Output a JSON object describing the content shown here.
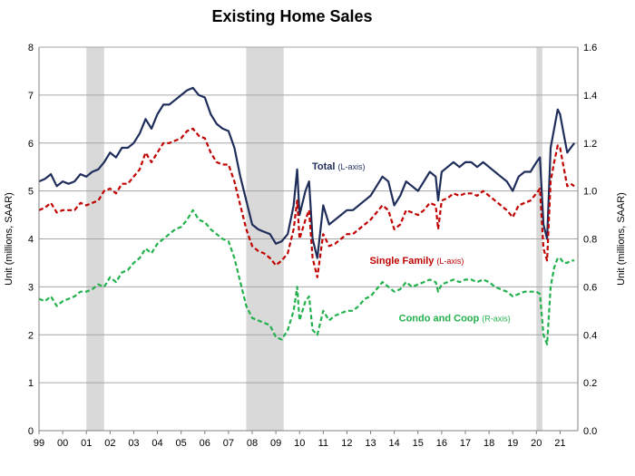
{
  "chart_data": {
    "type": "line",
    "title": "Existing Home Sales",
    "ylabel_left": "Unit (millions, SAAR)",
    "ylabel_right": "Unit (millions, SAAR)",
    "ylim_left": [
      0,
      8
    ],
    "ylim_right": [
      0,
      1.6
    ],
    "yticks_left": [
      "0",
      "1",
      "2",
      "3",
      "4",
      "5",
      "6",
      "7",
      "8"
    ],
    "yticks_right": [
      "0.0",
      "0.2",
      "0.4",
      "0.6",
      "0.8",
      "1.0",
      "1.2",
      "1.4",
      "1.6"
    ],
    "xlim": [
      1999.0,
      2021.75
    ],
    "xticks": [
      {
        "x": 1999.0,
        "label": "99"
      },
      {
        "x": 2000.0,
        "label": "00"
      },
      {
        "x": 2001.0,
        "label": "01"
      },
      {
        "x": 2002.0,
        "label": "02"
      },
      {
        "x": 2003.0,
        "label": "03"
      },
      {
        "x": 2004.0,
        "label": "04"
      },
      {
        "x": 2005.0,
        "label": "05"
      },
      {
        "x": 2006.0,
        "label": "06"
      },
      {
        "x": 2007.0,
        "label": "07"
      },
      {
        "x": 2008.0,
        "label": "08"
      },
      {
        "x": 2009.0,
        "label": "09"
      },
      {
        "x": 2010.0,
        "label": "10"
      },
      {
        "x": 2011.0,
        "label": "11"
      },
      {
        "x": 2012.0,
        "label": "12"
      },
      {
        "x": 2013.0,
        "label": "13"
      },
      {
        "x": 2014.0,
        "label": "14"
      },
      {
        "x": 2015.0,
        "label": "15"
      },
      {
        "x": 2016.0,
        "label": "16"
      },
      {
        "x": 2017.0,
        "label": "17"
      },
      {
        "x": 2018.0,
        "label": "18"
      },
      {
        "x": 2019.0,
        "label": "19"
      },
      {
        "x": 2020.0,
        "label": "20"
      },
      {
        "x": 2021.0,
        "label": "21"
      }
    ],
    "recessions": [
      [
        2001.0,
        2001.75
      ],
      [
        2007.75,
        2009.33
      ],
      [
        2020.0,
        2020.25
      ]
    ],
    "recession_color": "#d9d9d9",
    "grid": true,
    "series": [
      {
        "name": "Total",
        "axis_note": "(L-axis)",
        "axis": "left",
        "color": "#1f2d5a",
        "dash": "solid",
        "x": [
          1999.0,
          1999.25,
          1999.5,
          1999.75,
          2000.0,
          2000.25,
          2000.5,
          2000.75,
          2001.0,
          2001.25,
          2001.5,
          2001.75,
          2002.0,
          2002.25,
          2002.5,
          2002.75,
          2003.0,
          2003.25,
          2003.5,
          2003.75,
          2004.0,
          2004.25,
          2004.5,
          2004.75,
          2005.0,
          2005.25,
          2005.5,
          2005.75,
          2006.0,
          2006.25,
          2006.5,
          2006.75,
          2007.0,
          2007.25,
          2007.5,
          2007.75,
          2008.0,
          2008.25,
          2008.5,
          2008.75,
          2009.0,
          2009.25,
          2009.5,
          2009.75,
          2009.9,
          2010.0,
          2010.25,
          2010.4,
          2010.55,
          2010.75,
          2011.0,
          2011.25,
          2011.5,
          2011.75,
          2012.0,
          2012.25,
          2012.5,
          2012.75,
          2013.0,
          2013.25,
          2013.5,
          2013.75,
          2014.0,
          2014.25,
          2014.5,
          2014.75,
          2015.0,
          2015.25,
          2015.5,
          2015.75,
          2015.85,
          2016.0,
          2016.25,
          2016.5,
          2016.75,
          2017.0,
          2017.25,
          2017.5,
          2017.75,
          2018.0,
          2018.25,
          2018.5,
          2018.75,
          2019.0,
          2019.25,
          2019.5,
          2019.75,
          2020.0,
          2020.15,
          2020.3,
          2020.45,
          2020.6,
          2020.75,
          2020.9,
          2021.0,
          2021.15,
          2021.3,
          2021.45,
          2021.6
        ],
        "y": [
          5.2,
          5.25,
          5.35,
          5.1,
          5.2,
          5.15,
          5.2,
          5.35,
          5.3,
          5.4,
          5.45,
          5.6,
          5.8,
          5.7,
          5.9,
          5.9,
          6.0,
          6.2,
          6.5,
          6.3,
          6.6,
          6.8,
          6.8,
          6.9,
          7.0,
          7.1,
          7.15,
          7.0,
          6.95,
          6.6,
          6.4,
          6.3,
          6.25,
          5.9,
          5.3,
          4.8,
          4.3,
          4.2,
          4.15,
          4.1,
          3.9,
          3.95,
          4.1,
          4.7,
          5.45,
          4.5,
          5.0,
          5.2,
          4.0,
          3.6,
          4.7,
          4.3,
          4.4,
          4.5,
          4.6,
          4.6,
          4.7,
          4.8,
          4.9,
          5.1,
          5.3,
          5.2,
          4.7,
          4.9,
          5.2,
          5.1,
          5.0,
          5.2,
          5.4,
          5.3,
          4.8,
          5.4,
          5.5,
          5.6,
          5.5,
          5.6,
          5.6,
          5.5,
          5.6,
          5.5,
          5.4,
          5.3,
          5.2,
          5.0,
          5.3,
          5.4,
          5.4,
          5.6,
          5.7,
          4.3,
          4.0,
          5.9,
          6.3,
          6.7,
          6.6,
          6.2,
          5.8,
          5.9,
          6.0
        ]
      },
      {
        "name": "Single Family",
        "axis_note": "(L-axis)",
        "axis": "left",
        "color": "#c00000",
        "dash": "dashed",
        "x": [
          1999.0,
          1999.25,
          1999.5,
          1999.75,
          2000.0,
          2000.25,
          2000.5,
          2000.75,
          2001.0,
          2001.25,
          2001.5,
          2001.75,
          2002.0,
          2002.25,
          2002.5,
          2002.75,
          2003.0,
          2003.25,
          2003.5,
          2003.75,
          2004.0,
          2004.25,
          2004.5,
          2004.75,
          2005.0,
          2005.25,
          2005.5,
          2005.75,
          2006.0,
          2006.25,
          2006.5,
          2006.75,
          2007.0,
          2007.25,
          2007.5,
          2007.75,
          2008.0,
          2008.25,
          2008.5,
          2008.75,
          2009.0,
          2009.25,
          2009.5,
          2009.75,
          2009.9,
          2010.0,
          2010.25,
          2010.4,
          2010.55,
          2010.75,
          2011.0,
          2011.25,
          2011.5,
          2011.75,
          2012.0,
          2012.25,
          2012.5,
          2012.75,
          2013.0,
          2013.25,
          2013.5,
          2013.75,
          2014.0,
          2014.25,
          2014.5,
          2014.75,
          2015.0,
          2015.25,
          2015.5,
          2015.75,
          2015.85,
          2016.0,
          2016.25,
          2016.5,
          2016.75,
          2017.0,
          2017.25,
          2017.5,
          2017.75,
          2018.0,
          2018.25,
          2018.5,
          2018.75,
          2019.0,
          2019.25,
          2019.5,
          2019.75,
          2020.0,
          2020.15,
          2020.3,
          2020.45,
          2020.6,
          2020.75,
          2020.9,
          2021.0,
          2021.15,
          2021.3,
          2021.45,
          2021.6
        ],
        "y": [
          4.6,
          4.65,
          4.75,
          4.55,
          4.6,
          4.6,
          4.6,
          4.75,
          4.7,
          4.75,
          4.8,
          5.0,
          5.05,
          4.95,
          5.15,
          5.15,
          5.3,
          5.45,
          5.8,
          5.6,
          5.8,
          6.0,
          6.0,
          6.05,
          6.1,
          6.25,
          6.3,
          6.15,
          6.1,
          5.8,
          5.6,
          5.55,
          5.55,
          5.2,
          4.7,
          4.2,
          3.85,
          3.75,
          3.7,
          3.6,
          3.45,
          3.55,
          3.7,
          4.2,
          4.8,
          4.0,
          4.4,
          4.6,
          3.6,
          3.2,
          4.1,
          3.85,
          3.9,
          4.0,
          4.1,
          4.1,
          4.2,
          4.3,
          4.4,
          4.55,
          4.7,
          4.6,
          4.2,
          4.3,
          4.6,
          4.55,
          4.5,
          4.6,
          4.75,
          4.7,
          4.2,
          4.8,
          4.85,
          4.95,
          4.9,
          4.95,
          4.95,
          4.9,
          5.0,
          4.9,
          4.8,
          4.7,
          4.6,
          4.45,
          4.7,
          4.75,
          4.8,
          4.95,
          5.05,
          3.8,
          3.55,
          5.2,
          5.6,
          5.95,
          5.9,
          5.5,
          5.1,
          5.15,
          5.1
        ]
      },
      {
        "name": "Condo and Coop",
        "axis_note": "(R-axis)",
        "axis": "right",
        "color": "#22b14c",
        "dash": "dashed",
        "x": [
          1999.0,
          1999.25,
          1999.5,
          1999.75,
          2000.0,
          2000.25,
          2000.5,
          2000.75,
          2001.0,
          2001.25,
          2001.5,
          2001.75,
          2002.0,
          2002.25,
          2002.5,
          2002.75,
          2003.0,
          2003.25,
          2003.5,
          2003.75,
          2004.0,
          2004.25,
          2004.5,
          2004.75,
          2005.0,
          2005.25,
          2005.5,
          2005.75,
          2006.0,
          2006.25,
          2006.5,
          2006.75,
          2007.0,
          2007.25,
          2007.5,
          2007.75,
          2008.0,
          2008.25,
          2008.5,
          2008.75,
          2009.0,
          2009.25,
          2009.5,
          2009.75,
          2009.9,
          2010.0,
          2010.25,
          2010.4,
          2010.55,
          2010.75,
          2011.0,
          2011.25,
          2011.5,
          2011.75,
          2012.0,
          2012.25,
          2012.5,
          2012.75,
          2013.0,
          2013.25,
          2013.5,
          2013.75,
          2014.0,
          2014.25,
          2014.5,
          2014.75,
          2015.0,
          2015.25,
          2015.5,
          2015.75,
          2015.85,
          2016.0,
          2016.25,
          2016.5,
          2016.75,
          2017.0,
          2017.25,
          2017.5,
          2017.75,
          2018.0,
          2018.25,
          2018.5,
          2018.75,
          2019.0,
          2019.25,
          2019.5,
          2019.75,
          2020.0,
          2020.15,
          2020.3,
          2020.45,
          2020.6,
          2020.75,
          2020.9,
          2021.0,
          2021.15,
          2021.3,
          2021.45,
          2021.6
        ],
        "y": [
          0.55,
          0.54,
          0.56,
          0.52,
          0.54,
          0.55,
          0.56,
          0.58,
          0.58,
          0.59,
          0.61,
          0.6,
          0.64,
          0.62,
          0.66,
          0.67,
          0.7,
          0.72,
          0.76,
          0.74,
          0.78,
          0.8,
          0.82,
          0.84,
          0.85,
          0.88,
          0.92,
          0.88,
          0.87,
          0.84,
          0.82,
          0.8,
          0.79,
          0.72,
          0.62,
          0.52,
          0.47,
          0.46,
          0.45,
          0.44,
          0.39,
          0.38,
          0.42,
          0.5,
          0.6,
          0.46,
          0.54,
          0.56,
          0.42,
          0.4,
          0.5,
          0.46,
          0.48,
          0.49,
          0.5,
          0.5,
          0.52,
          0.55,
          0.56,
          0.59,
          0.62,
          0.6,
          0.58,
          0.59,
          0.62,
          0.6,
          0.61,
          0.62,
          0.63,
          0.62,
          0.58,
          0.61,
          0.62,
          0.63,
          0.62,
          0.63,
          0.63,
          0.62,
          0.63,
          0.62,
          0.6,
          0.59,
          0.58,
          0.56,
          0.57,
          0.58,
          0.58,
          0.58,
          0.57,
          0.4,
          0.36,
          0.6,
          0.68,
          0.72,
          0.72,
          0.7,
          0.7,
          0.71,
          0.71
        ]
      }
    ]
  }
}
